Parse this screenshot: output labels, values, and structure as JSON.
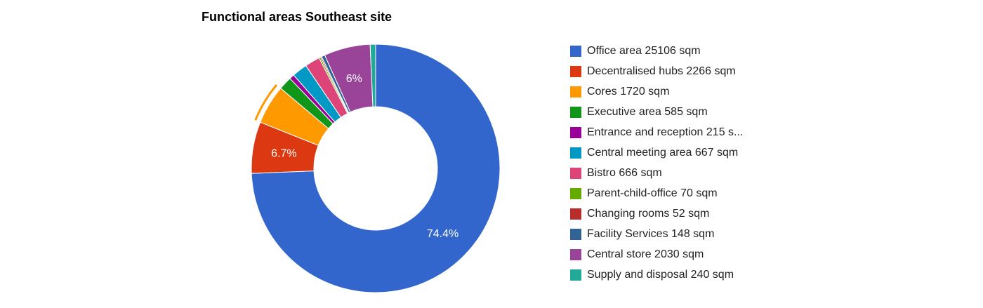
{
  "chart_data": {
    "type": "pie",
    "title": "Functional areas Southeast site",
    "donut": true,
    "legend_position": "right",
    "slices": [
      {
        "label": "Office area 25106 sqm",
        "value": 25106,
        "color": "#3366cc",
        "pct_label": "74.4%"
      },
      {
        "label": "Decentralised hubs 2266 sqm",
        "value": 2266,
        "color": "#dc3912",
        "pct_label": "6.7%"
      },
      {
        "label": "Cores 1720 sqm",
        "value": 1720,
        "color": "#ff9900",
        "pct_label": "",
        "exploded": true
      },
      {
        "label": "Executive area 585 sqm",
        "value": 585,
        "color": "#109618",
        "pct_label": ""
      },
      {
        "label": "Entrance and reception 215 s...",
        "value": 215,
        "color": "#990099",
        "pct_label": ""
      },
      {
        "label": "Central meeting area 667 sqm",
        "value": 667,
        "color": "#0099c6",
        "pct_label": ""
      },
      {
        "label": "Bistro 666 sqm",
        "value": 666,
        "color": "#dd4477",
        "pct_label": ""
      },
      {
        "label": "Parent-child-office 70 sqm",
        "value": 70,
        "color": "#66aa00",
        "pct_label": ""
      },
      {
        "label": "Changing rooms 52 sqm",
        "value": 52,
        "color": "#b82e2e",
        "pct_label": ""
      },
      {
        "label": "Facility Services 148 sqm",
        "value": 148,
        "color": "#316395",
        "pct_label": ""
      },
      {
        "label": "Central store 2030 sqm",
        "value": 2030,
        "color": "#994499",
        "pct_label": "6%"
      },
      {
        "label": "Supply and disposal 240 sqm",
        "value": 240,
        "color": "#22aa99",
        "pct_label": ""
      }
    ]
  }
}
